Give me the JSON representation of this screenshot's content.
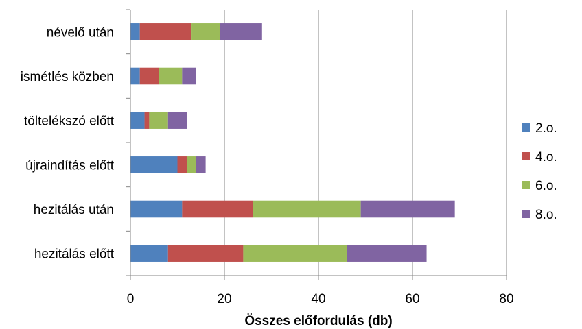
{
  "chart_data": {
    "type": "bar",
    "orientation": "horizontal",
    "stacked": true,
    "categories": [
      "névelő után",
      "ismétlés közben",
      "töltelékszó előtt",
      "újraindítás előtt",
      "hezitálás után",
      "hezitálás előtt"
    ],
    "series": [
      {
        "name": "2.o.",
        "color": "#4f81bd",
        "values": [
          2,
          2,
          3,
          10,
          11,
          8
        ]
      },
      {
        "name": "4.o.",
        "color": "#c0504d",
        "values": [
          11,
          4,
          1,
          2,
          15,
          16
        ]
      },
      {
        "name": "6.o.",
        "color": "#9bbb59",
        "values": [
          6,
          5,
          4,
          2,
          23,
          22
        ]
      },
      {
        "name": "8.o.",
        "color": "#8064a2",
        "values": [
          9,
          3,
          4,
          2,
          20,
          17
        ]
      }
    ],
    "xlabel": "Összes előfordulás (db)",
    "ylabel": "",
    "xlim": [
      0,
      80
    ],
    "xticks": [
      0,
      20,
      40,
      60,
      80
    ],
    "grid": "vertical",
    "legend": "right"
  }
}
